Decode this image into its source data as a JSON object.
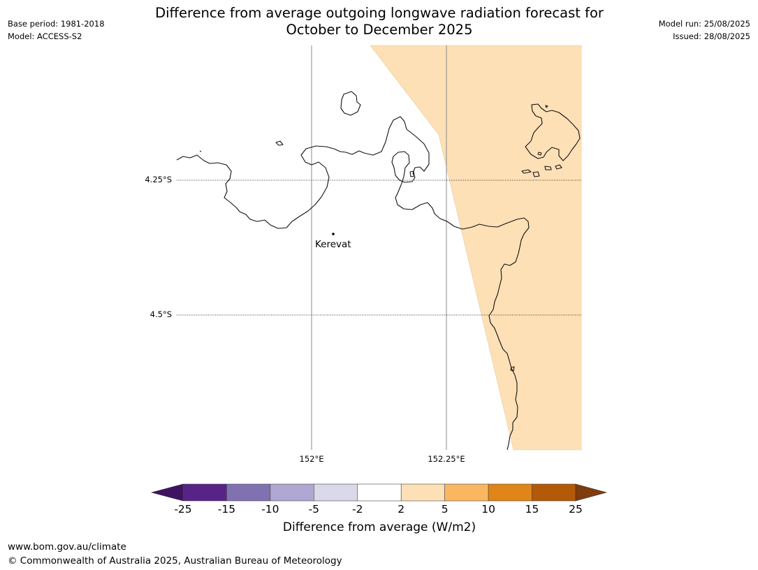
{
  "title_lines": [
    "Difference from average outgoing longwave radiation forecast for",
    "October to December 2025"
  ],
  "meta_left": [
    "Base period: 1981-2018",
    "Model: ACCESS-S2"
  ],
  "meta_right": [
    "Model run: 25/08/2025",
    "Issued: 28/08/2025"
  ],
  "lat_labels": [
    "4.25°S",
    "4.5°S"
  ],
  "lon_labels": [
    "152°E",
    "152.25°E"
  ],
  "place": "Kerevat",
  "colorbar": {
    "title": "Difference from average (W/m2)",
    "ticks": [
      "-25",
      "-15",
      "-10",
      "-5",
      "-2",
      "2",
      "5",
      "10",
      "15",
      "25"
    ],
    "colors": [
      "#3f1262",
      "#572387",
      "#8072b0",
      "#b0a8d2",
      "#d9d9ea",
      "#ffffff",
      "#fde0b6",
      "#fbb760",
      "#e08517",
      "#b45907",
      "#7f3c0c"
    ]
  },
  "shade_color": "#fde0b6",
  "footer": {
    "url": "www.bom.gov.au/climate",
    "copyright": "© Commonwealth of Australia 2025, Australian Bureau of Meteorology"
  }
}
